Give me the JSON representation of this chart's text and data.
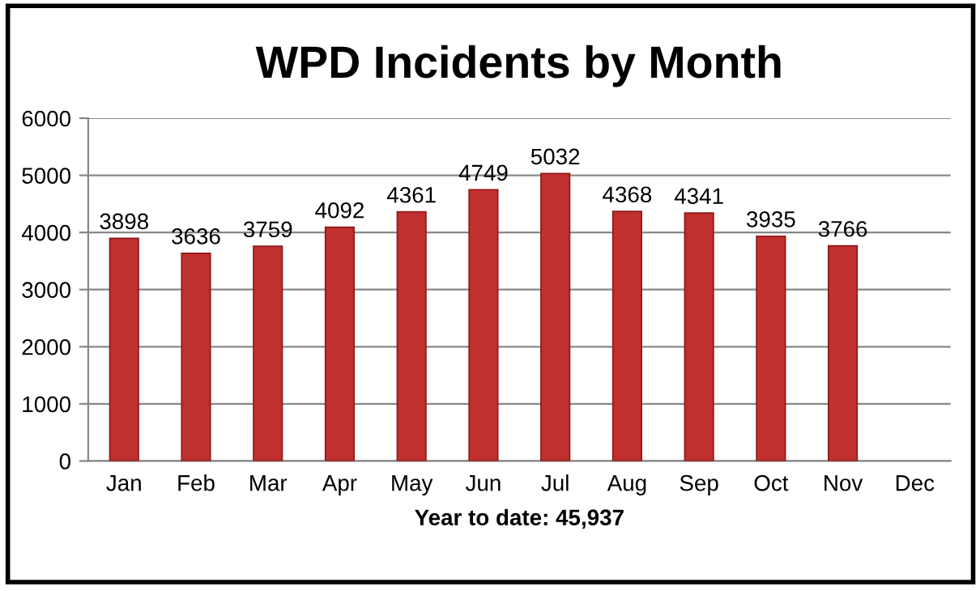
{
  "chart_data": {
    "type": "bar",
    "title": "WPD Incidents by Month",
    "xlabel": "Year to date: 45,937",
    "categories": [
      "Jan",
      "Feb",
      "Mar",
      "Apr",
      "May",
      "Jun",
      "Jul",
      "Aug",
      "Sep",
      "Oct",
      "Nov",
      "Dec"
    ],
    "values": [
      3898,
      3636,
      3759,
      4092,
      4361,
      4749,
      5032,
      4368,
      4341,
      3935,
      3766,
      null
    ],
    "color": "#c0302e",
    "ylim": [
      0,
      6000
    ],
    "yticks": [
      0,
      1000,
      2000,
      3000,
      4000,
      5000,
      6000
    ],
    "grid": "y",
    "data_labels": true
  }
}
